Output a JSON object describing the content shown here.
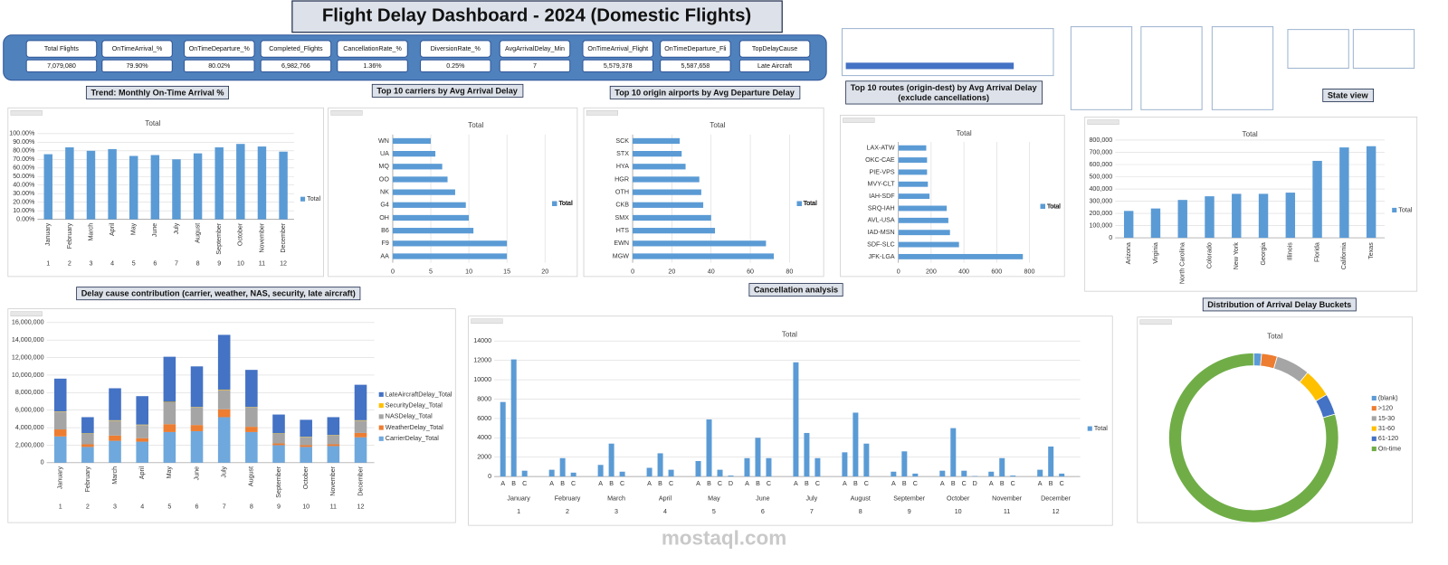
{
  "header": {
    "title": "Flight Delay Dashboard - 2024 (Domestic Flights)"
  },
  "kpis": [
    {
      "label": "Total Flights",
      "value": "7,079,080"
    },
    {
      "label": "OnTimeArrival_%",
      "value": "79.90%"
    },
    {
      "label": "OnTimeDeparture_%",
      "value": "80.02%"
    },
    {
      "label": "Completed_Flights",
      "value": "6,982,766"
    },
    {
      "label": "CancellationRate_%",
      "value": "1.36%"
    },
    {
      "label": "DiversionRate_%",
      "value": "0.25%"
    },
    {
      "label": "AvgArrivalDelay_Min",
      "value": "7"
    },
    {
      "label": "OnTimeArrival_Flight",
      "value": "5,579,378"
    },
    {
      "label": "OnTimeDeparture_Fli",
      "value": "5,587,658"
    },
    {
      "label": "TopDelayCause",
      "value": "Late Aircraft"
    }
  ],
  "watermark": "mostaql.com",
  "chart_data": [
    {
      "type": "bar",
      "heading": "Trend: Monthly On-Time Arrival %",
      "title": "Total",
      "categories": [
        "January",
        "February",
        "March",
        "April",
        "May",
        "June",
        "July",
        "August",
        "September",
        "October",
        "November",
        "December"
      ],
      "category_groups": [
        "1",
        "2",
        "3",
        "4",
        "5",
        "6",
        "7",
        "8",
        "9",
        "10",
        "11",
        "12"
      ],
      "series": [
        {
          "name": "Total",
          "color": "#5b9bd5",
          "values": [
            76,
            84,
            80,
            82,
            74,
            75,
            70,
            77,
            84,
            88,
            85,
            79
          ]
        }
      ],
      "ylim": [
        0,
        100
      ],
      "yticks": [
        {
          "value": 0,
          "label": "0.00%"
        },
        {
          "value": 10,
          "label": "10.00%"
        },
        {
          "value": 20,
          "label": "20.00%"
        },
        {
          "value": 30,
          "label": "30.00%"
        },
        {
          "value": 40,
          "label": "40.00%"
        },
        {
          "value": 50,
          "label": "50.00%"
        },
        {
          "value": 60,
          "label": "60.00%"
        },
        {
          "value": 70,
          "label": "70.00%"
        },
        {
          "value": 80,
          "label": "80.00%"
        },
        {
          "value": 90,
          "label": "90.00%"
        },
        {
          "value": 100,
          "label": "100.00%"
        }
      ],
      "grid": true
    },
    {
      "type": "bar",
      "orientation": "horizontal",
      "heading": "Top 10 carriers by Avg Arrival Delay",
      "title": "Total",
      "categories": [
        "WN",
        "UA",
        "MQ",
        "OO",
        "NK",
        "G4",
        "OH",
        "B6",
        "F9",
        "AA"
      ],
      "series": [
        {
          "name": "Total",
          "color": "#5b9bd5",
          "values": [
            5,
            5.6,
            6.5,
            7.2,
            8.2,
            9.6,
            10,
            10.6,
            15,
            15
          ]
        }
      ],
      "xlim": [
        0,
        20
      ],
      "xticks": [
        0,
        5,
        10,
        15,
        20
      ],
      "grid": true
    },
    {
      "type": "bar",
      "orientation": "horizontal",
      "heading": "Top 10 origin airports by Avg Departure Delay",
      "title": "Total",
      "categories": [
        "SCK",
        "STX",
        "HYA",
        "HGR",
        "OTH",
        "CKB",
        "SMX",
        "HTS",
        "EWN",
        "MGW"
      ],
      "series": [
        {
          "name": "Total",
          "color": "#5b9bd5",
          "values": [
            24,
            25,
            27,
            34,
            35,
            36,
            40,
            42,
            68,
            72
          ]
        }
      ],
      "xlim": [
        0,
        80
      ],
      "xticks": [
        0,
        20,
        40,
        60,
        80
      ],
      "grid": true
    },
    {
      "type": "bar",
      "orientation": "horizontal",
      "heading": [
        "Top 10 routes (origin-dest) by Avg Arrival Delay",
        "(exclude cancellations)"
      ],
      "title": "Total",
      "categories": [
        "LAX-ATW",
        "OKC-CAE",
        "PIE-VPS",
        "MVY-CLT",
        "IAH-SDF",
        "SRQ-IAH",
        "AVL-USA",
        "IAD-MSN",
        "SDF-SLC",
        "JFK-LGA"
      ],
      "series": [
        {
          "name": "Total",
          "color": "#5b9bd5",
          "values": [
            170,
            175,
            175,
            180,
            190,
            295,
            305,
            315,
            370,
            760
          ]
        }
      ],
      "xlim": [
        0,
        800
      ],
      "xticks": [
        0,
        200,
        400,
        600,
        800
      ],
      "grid": true
    },
    {
      "type": "bar",
      "heading": "State view",
      "title": "Total",
      "categories": [
        "Arizona",
        "Virginia",
        "North Carolina",
        "Colorado",
        "New York",
        "Georgia",
        "Illinois",
        "Florida",
        "California",
        "Texas"
      ],
      "series": [
        {
          "name": "Total",
          "color": "#5b9bd5",
          "values": [
            220000,
            240000,
            310000,
            340000,
            360000,
            360000,
            370000,
            630000,
            740000,
            750000
          ]
        }
      ],
      "ylim": [
        0,
        800000
      ],
      "yticks": [
        0,
        {
          "value": 100000,
          "label": "100,000"
        },
        {
          "value": 200000,
          "label": "200,000"
        },
        {
          "value": 300000,
          "label": "300,000"
        },
        {
          "value": 400000,
          "label": "400,000"
        },
        {
          "value": 500000,
          "label": "500,000"
        },
        {
          "value": 600000,
          "label": "600,000"
        },
        {
          "value": 700000,
          "label": "700,000"
        },
        {
          "value": 800000,
          "label": "800,000"
        }
      ],
      "grid": true
    },
    {
      "type": "bar",
      "stacked": true,
      "heading": "Delay cause contribution (carrier, weather, NAS, security, late aircraft)",
      "categories": [
        "January",
        "February",
        "March",
        "April",
        "May",
        "June",
        "July",
        "August",
        "September",
        "October",
        "November",
        "December"
      ],
      "category_groups": [
        "1",
        "2",
        "3",
        "4",
        "5",
        "6",
        "7",
        "8",
        "9",
        "10",
        "11",
        "12"
      ],
      "series": [
        {
          "name": "CarrierDelay_Total",
          "color": "#6fa8dc",
          "values": [
            3000000,
            1800000,
            2500000,
            2400000,
            3500000,
            3600000,
            5200000,
            3500000,
            2000000,
            1800000,
            1900000,
            2900000
          ]
        },
        {
          "name": "WeatherDelay_Total",
          "color": "#ed7d31",
          "values": [
            800000,
            300000,
            600000,
            400000,
            900000,
            700000,
            900000,
            600000,
            200000,
            200000,
            200000,
            500000
          ]
        },
        {
          "name": "NASDelay_Total",
          "color": "#a5a5a5",
          "values": [
            2000000,
            1200000,
            1700000,
            1500000,
            2500000,
            2000000,
            2200000,
            2200000,
            1100000,
            900000,
            1000000,
            1400000
          ]
        },
        {
          "name": "SecurityDelay_Total",
          "color": "#ffc000",
          "values": [
            50000,
            50000,
            50000,
            50000,
            50000,
            50000,
            50000,
            50000,
            50000,
            50000,
            50000,
            50000
          ]
        },
        {
          "name": "LateAircraftDelay_Total",
          "color": "#4472c4",
          "values": [
            3750000,
            1850000,
            3650000,
            3250000,
            5150000,
            4650000,
            6250000,
            4250000,
            2150000,
            1950000,
            2050000,
            4050000
          ]
        }
      ],
      "ylim": [
        0,
        16000000
      ],
      "yticks": [
        0,
        {
          "value": 2000000,
          "label": "2,000,000"
        },
        {
          "value": 4000000,
          "label": "4,000,000"
        },
        {
          "value": 6000000,
          "label": "6,000,000"
        },
        {
          "value": 8000000,
          "label": "8,000,000"
        },
        {
          "value": 10000000,
          "label": "10,000,000"
        },
        {
          "value": 12000000,
          "label": "12,000,000"
        },
        {
          "value": 14000000,
          "label": "14,000,000"
        },
        {
          "value": 16000000,
          "label": "16,000,000"
        }
      ],
      "grid": true
    },
    {
      "type": "bar",
      "heading": "Cancellation analysis",
      "title": "Total",
      "series_name": "Total",
      "color": "#5b9bd5",
      "groups": [
        {
          "label": "January",
          "number": "1",
          "categories": [
            "A",
            "B",
            "C"
          ],
          "values": [
            7700,
            12100,
            600
          ]
        },
        {
          "label": "February",
          "number": "2",
          "categories": [
            "A",
            "B",
            "C"
          ],
          "values": [
            700,
            1900,
            400
          ]
        },
        {
          "label": "March",
          "number": "3",
          "categories": [
            "A",
            "B",
            "C"
          ],
          "values": [
            1200,
            3400,
            500
          ]
        },
        {
          "label": "April",
          "number": "4",
          "categories": [
            "A",
            "B",
            "C"
          ],
          "values": [
            900,
            2400,
            700
          ]
        },
        {
          "label": "May",
          "number": "5",
          "categories": [
            "A",
            "B",
            "C",
            "D"
          ],
          "values": [
            1600,
            5900,
            700,
            100
          ]
        },
        {
          "label": "June",
          "number": "6",
          "categories": [
            "A",
            "B",
            "C"
          ],
          "values": [
            1900,
            4000,
            1900
          ]
        },
        {
          "label": "July",
          "number": "7",
          "categories": [
            "A",
            "B",
            "C"
          ],
          "values": [
            11800,
            4500,
            1900
          ]
        },
        {
          "label": "August",
          "number": "8",
          "categories": [
            "A",
            "B",
            "C"
          ],
          "values": [
            2500,
            6600,
            3400
          ]
        },
        {
          "label": "September",
          "number": "9",
          "categories": [
            "A",
            "B",
            "C"
          ],
          "values": [
            500,
            2600,
            300
          ]
        },
        {
          "label": "October",
          "number": "10",
          "categories": [
            "A",
            "B",
            "C",
            "D"
          ],
          "values": [
            600,
            5000,
            600,
            50
          ]
        },
        {
          "label": "November",
          "number": "11",
          "categories": [
            "A",
            "B",
            "C"
          ],
          "values": [
            500,
            1900,
            100
          ]
        },
        {
          "label": "December",
          "number": "12",
          "categories": [
            "A",
            "B",
            "C"
          ],
          "values": [
            700,
            3100,
            300
          ]
        }
      ],
      "ylim": [
        0,
        14000
      ],
      "yticks": [
        0,
        2000,
        4000,
        6000,
        8000,
        10000,
        12000,
        14000
      ],
      "grid": true
    },
    {
      "type": "pie",
      "heading": "Distribution of Arrival Delay Buckets",
      "title": "Total",
      "hole": 0.85,
      "categories": [
        "(blank)",
        ">120",
        "15-30",
        "31-60",
        "61-120",
        "On-time"
      ],
      "values": [
        1.5,
        3,
        6.5,
        5.5,
        4,
        79.5
      ],
      "colors": [
        "#5b9bd5",
        "#ed7d31",
        "#a5a5a5",
        "#ffc000",
        "#4472c4",
        "#70ad47"
      ]
    }
  ]
}
